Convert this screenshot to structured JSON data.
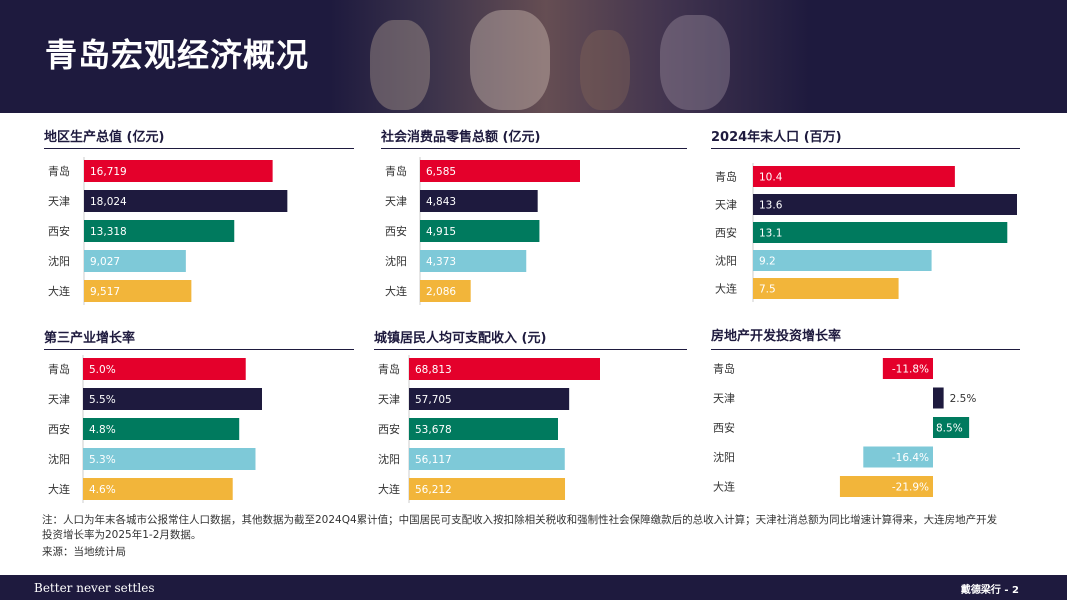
{
  "header": {
    "title": "青岛宏观经济概况"
  },
  "colors": {
    "qingdao": "#e4002b",
    "tianjin": "#1e1a3e",
    "xian": "#007a5e",
    "shenyang": "#7ec9d8",
    "dalian": "#f2b53a",
    "navy": "#1e1a3e"
  },
  "chart_data": [
    {
      "type": "bar",
      "title": "地区生产总值 (亿元)",
      "categories": [
        "青岛",
        "天津",
        "西安",
        "沈阳",
        "大连"
      ],
      "values": [
        16719,
        18024,
        13318,
        9027,
        9517
      ],
      "labels": [
        "16,719",
        "18,024",
        "13,318",
        "9,027",
        "9,517"
      ]
    },
    {
      "type": "bar",
      "title": "社会消费品零售总额 (亿元)",
      "categories": [
        "青岛",
        "天津",
        "西安",
        "沈阳",
        "大连"
      ],
      "values": [
        6585,
        4843,
        4915,
        4373,
        2086
      ],
      "labels": [
        "6,585",
        "4,843",
        "4,915",
        "4,373",
        "2,086"
      ]
    },
    {
      "type": "bar",
      "title": "2024年末人口 (百万)",
      "categories": [
        "青岛",
        "天津",
        "西安",
        "沈阳",
        "大连"
      ],
      "values": [
        10.4,
        13.6,
        13.1,
        9.2,
        7.5
      ],
      "labels": [
        "10.4",
        "13.6",
        "13.1",
        "9.2",
        "7.5"
      ]
    },
    {
      "type": "bar",
      "title": "第三产业增长率",
      "categories": [
        "青岛",
        "天津",
        "西安",
        "沈阳",
        "大连"
      ],
      "values": [
        5.0,
        5.5,
        4.8,
        5.3,
        4.6
      ],
      "labels": [
        "5.0%",
        "5.5%",
        "4.8%",
        "5.3%",
        "4.6%"
      ]
    },
    {
      "type": "bar",
      "title": "城镇居民人均可支配收入 (元)",
      "categories": [
        "青岛",
        "天津",
        "西安",
        "沈阳",
        "大连"
      ],
      "values": [
        68813,
        57705,
        53678,
        56117,
        56212
      ],
      "labels": [
        "68,813",
        "57,705",
        "53,678",
        "56,117",
        "56,212"
      ]
    },
    {
      "type": "bar",
      "title": "房地产开发投资增长率",
      "categories": [
        "青岛",
        "天津",
        "西安",
        "沈阳",
        "大连"
      ],
      "values": [
        -11.8,
        2.5,
        8.5,
        -16.4,
        -21.9
      ],
      "labels": [
        "-11.8%",
        "2.5%",
        "8.5%",
        "-16.4%",
        "-21.9%"
      ]
    }
  ],
  "note": "注：人口为年末各城市公报常住人口数据，其他数据为截至2024Q4累计值；中国居民可支配收入按扣除相关税收和强制性社会保障缴款后的总收入计算；天津社消总额为同比增速计算得来，大连房地产开发投资增长率为2025年1-2月数据。",
  "source": "来源：当地统计局",
  "footer": {
    "slogan": "Better never settles",
    "brand": "戴德梁行 - 2"
  }
}
